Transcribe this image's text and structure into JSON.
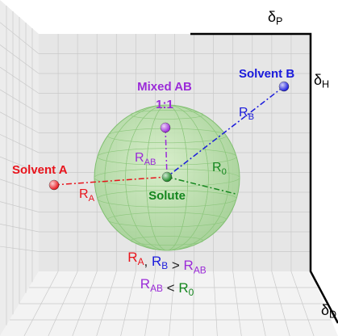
{
  "axes": {
    "p": {
      "symbol": "δ",
      "sub": "P",
      "color": "#000000"
    },
    "h": {
      "symbol": "δ",
      "sub": "H",
      "color": "#000000"
    },
    "d": {
      "symbol": "δ",
      "sub": "D",
      "color": "#000000"
    }
  },
  "points": [
    {
      "label": "Solvent A",
      "color": "#e8141c"
    },
    {
      "label": "Solvent B",
      "color": "#1a1adc"
    },
    {
      "label": "Mixed AB",
      "sublabel": "1:1",
      "color": "#9b2bd8"
    },
    {
      "label": "Solute",
      "color": "#14861e"
    }
  ],
  "distances": [
    {
      "symbol": "R",
      "sub": "A",
      "color": "#e8141c"
    },
    {
      "symbol": "R",
      "sub": "B",
      "color": "#1a1adc"
    },
    {
      "symbol": "R",
      "sub": "AB",
      "color": "#9b2bd8"
    },
    {
      "symbol": "R",
      "sub": "0",
      "color": "#14861e"
    }
  ],
  "inequalities": [
    [
      {
        "t": "R",
        "sub": "A",
        "color": "#e8141c"
      },
      {
        "t": ", ",
        "color": "#222222"
      },
      {
        "t": "R",
        "sub": "B",
        "color": "#1a1adc"
      },
      {
        "t": " > ",
        "color": "#222222"
      },
      {
        "t": "R",
        "sub": "AB",
        "color": "#9b2bd8"
      }
    ],
    [
      {
        "t": "R",
        "sub": "AB",
        "color": "#9b2bd8"
      },
      {
        "t": " < ",
        "color": "#222222"
      },
      {
        "t": "R",
        "sub": "0",
        "color": "#14861e"
      }
    ]
  ]
}
